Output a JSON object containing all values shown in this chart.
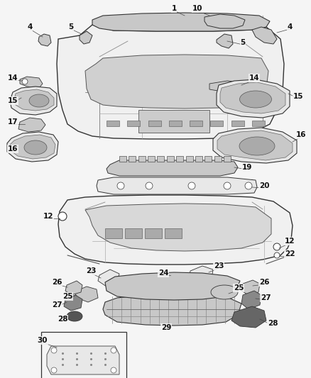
{
  "bg_color": "#f5f5f5",
  "figsize": [
    4.38,
    5.33
  ],
  "dpi": 100,
  "line_color": "#333333",
  "fill_light": "#e8e8e8",
  "fill_mid": "#c8c8c8",
  "fill_dark": "#888888",
  "label_fs": 7.5
}
